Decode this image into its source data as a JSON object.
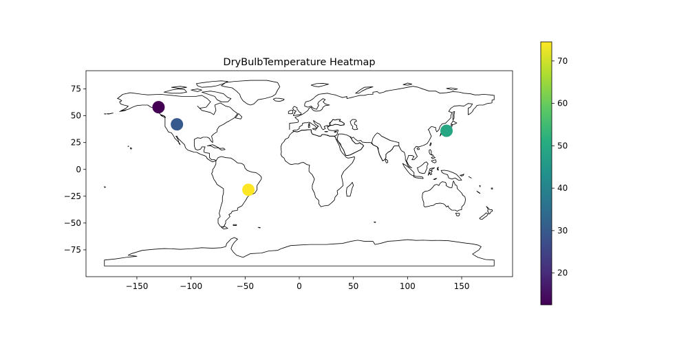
{
  "chart_data": {
    "type": "scatter",
    "title": "DryBulbTemperature Heatmap",
    "xlabel": "",
    "ylabel": "",
    "xlim": [
      -197,
      197
    ],
    "ylim": [
      -100,
      92
    ],
    "x_ticks": [
      -150,
      -100,
      -50,
      0,
      50,
      100,
      150
    ],
    "y_ticks": [
      -75,
      -50,
      -25,
      0,
      25,
      50,
      75
    ],
    "x_tick_labels": [
      "−150",
      "−100",
      "−50",
      "0",
      "50",
      "100",
      "150"
    ],
    "y_tick_labels": [
      "−75",
      "−50",
      "−25",
      "0",
      "25",
      "50",
      "75"
    ],
    "colormap": "viridis",
    "colorbar": {
      "vmin": 12.5,
      "vmax": 74.5,
      "ticks": [
        20,
        30,
        40,
        50,
        60,
        70
      ],
      "tick_labels": [
        "20",
        "30",
        "40",
        "50",
        "60",
        "70"
      ]
    },
    "points": [
      {
        "lon": -130,
        "lat": 58,
        "value": 12.5
      },
      {
        "lon": -113,
        "lat": 42,
        "value": 30
      },
      {
        "lon": -47,
        "lat": -19,
        "value": 74.5
      },
      {
        "lon": 136,
        "lat": 36,
        "value": 49
      }
    ],
    "basemap": "world-coastlines",
    "grid": false,
    "legend": "none"
  }
}
